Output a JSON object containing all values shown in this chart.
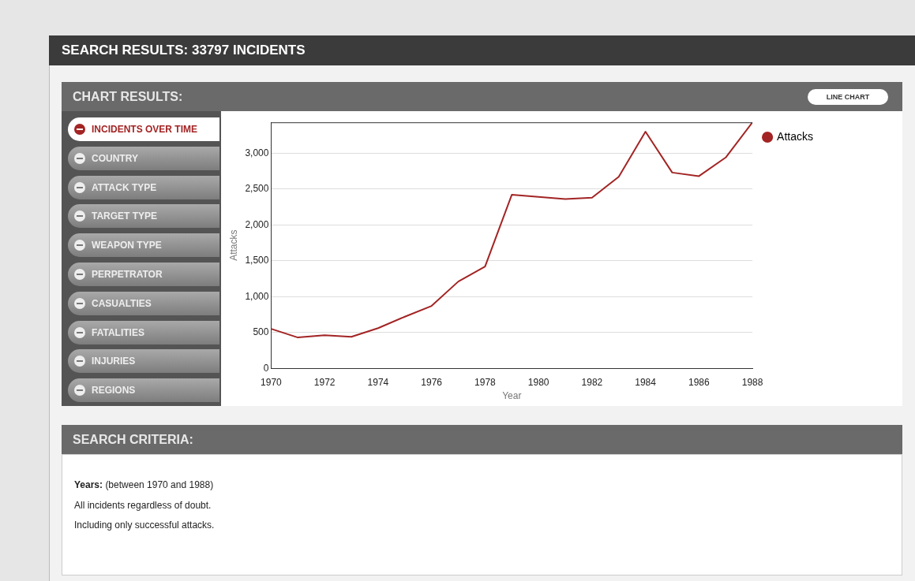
{
  "chart_data": {
    "type": "line",
    "title": "SEARCH RESULTS: 33797 INCIDENTS",
    "subtitle": "CHART RESULTS:",
    "xlabel": "Year",
    "ylabel": "Attacks",
    "x": [
      1970,
      1971,
      1972,
      1973,
      1974,
      1975,
      1976,
      1977,
      1978,
      1979,
      1980,
      1981,
      1982,
      1983,
      1984,
      1985,
      1986,
      1987,
      1988
    ],
    "series": [
      {
        "name": "Attacks",
        "color": "#a32424",
        "values": [
          550,
          430,
          460,
          440,
          560,
          720,
          870,
          1210,
          1420,
          2420,
          2390,
          2360,
          2380,
          2670,
          3300,
          2730,
          2680,
          2940,
          3430
        ]
      }
    ],
    "xlim": [
      1970,
      1988
    ],
    "xticks": [
      1970,
      1972,
      1974,
      1976,
      1978,
      1980,
      1982,
      1984,
      1986,
      1988
    ],
    "ylim": [
      0,
      3430
    ],
    "yticks": [
      0,
      500,
      {
        "value": 1000,
        "label": "1,000"
      },
      {
        "value": 1500,
        "label": "1,500"
      },
      {
        "value": 2000,
        "label": "2,000"
      },
      {
        "value": 2500,
        "label": "2,500"
      },
      {
        "value": 3000,
        "label": "3,000"
      }
    ],
    "grid": "y",
    "legend": "right",
    "marker": "none",
    "line_style": "solid",
    "annotations": [
      "LINE CHART",
      "INCIDENTS OVER TIME",
      "COUNTRY",
      "ATTACK TYPE",
      "TARGET TYPE",
      "WEAPON TYPE",
      "PERPETRATOR",
      "CASUALTIES",
      "FATALITIES",
      "INJURIES",
      "REGIONS",
      "SEARCH CRITERIA:",
      "Years:",
      "(between 1970 and 1988)",
      "All incidents regardless of doubt.",
      "Including only successful attacks."
    ]
  }
}
